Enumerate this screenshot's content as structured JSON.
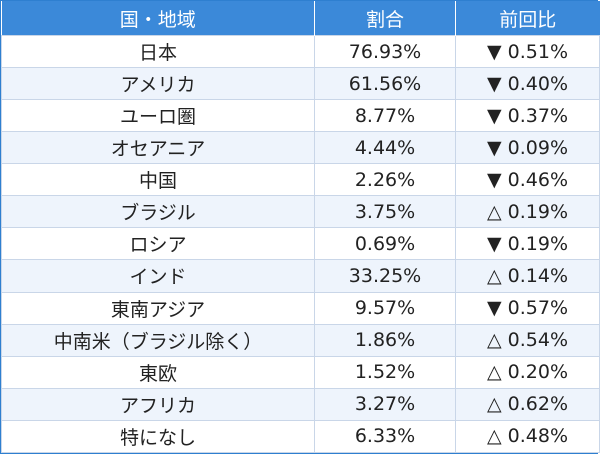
{
  "header": {
    "region": "国・地域",
    "ratio": "割合",
    "change": "前回比"
  },
  "rows": [
    {
      "region": "日本",
      "ratio": "76.93%",
      "change": "▼ 0.51%"
    },
    {
      "region": "アメリカ",
      "ratio": "61.56%",
      "change": "▼ 0.40%"
    },
    {
      "region": "ユーロ圏",
      "ratio": "8.77%",
      "change": "▼ 0.37%"
    },
    {
      "region": "オセアニア",
      "ratio": "4.44%",
      "change": "▼ 0.09%"
    },
    {
      "region": "中国",
      "ratio": "2.26%",
      "change": "▼ 0.46%"
    },
    {
      "region": "ブラジル",
      "ratio": "3.75%",
      "change": "△ 0.19%"
    },
    {
      "region": "ロシア",
      "ratio": "0.69%",
      "change": "▼ 0.19%"
    },
    {
      "region": "インド",
      "ratio": "33.25%",
      "change": "△ 0.14%"
    },
    {
      "region": "東南アジア",
      "ratio": "9.57%",
      "change": "▼ 0.57%"
    },
    {
      "region": "中南米（ブラジル除く）",
      "ratio": "1.86%",
      "change": "△ 0.54%"
    },
    {
      "region": "東欧",
      "ratio": "1.52%",
      "change": "△ 0.20%"
    },
    {
      "region": "アフリカ",
      "ratio": "3.27%",
      "change": "△ 0.62%"
    },
    {
      "region": "特になし",
      "ratio": "6.33%",
      "change": "△ 0.48%"
    }
  ],
  "colors": {
    "header_bg": "#3b89d9",
    "header_text": "#ffffff",
    "stripe": "#eef4fc",
    "border": "#c9d6e8"
  }
}
